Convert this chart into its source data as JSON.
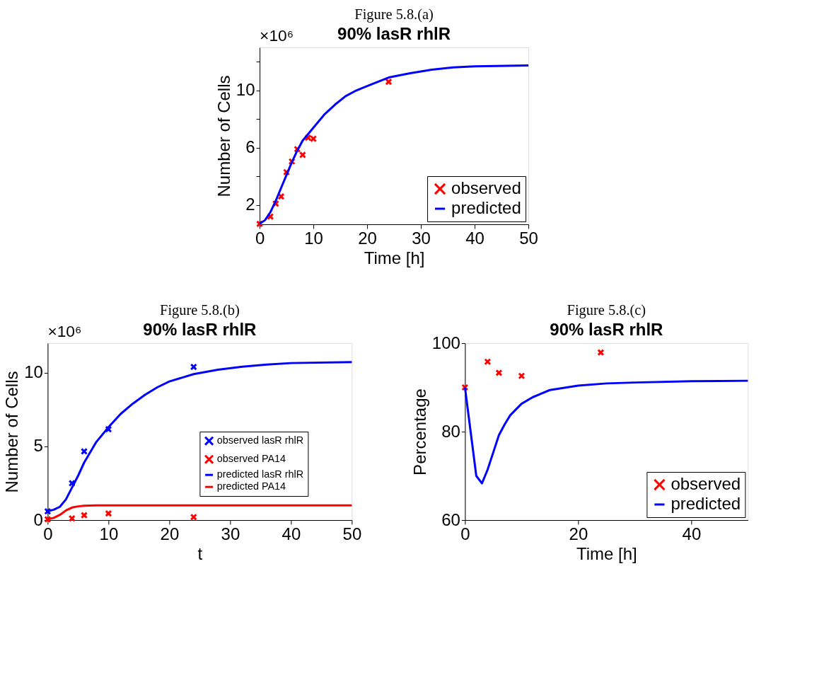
{
  "chart_data": [
    {
      "type": "line",
      "title": "90% lasR rhlR",
      "xlabel": "Time [h]",
      "ylabel": "Number of Cells",
      "annotations": [
        "Figure 5.8.(a)",
        "×10⁶"
      ],
      "xlim": [
        0,
        50
      ],
      "xticks": [
        0,
        10,
        20,
        30,
        40,
        50
      ],
      "ylim": [
        0.66,
        13
      ],
      "yticks": [
        2,
        {
          "value": 4,
          "label": null
        },
        6,
        {
          "value": 8,
          "label": null
        },
        10,
        {
          "value": 12,
          "label": null
        }
      ],
      "legend": "bottom right",
      "grid": false,
      "series": [
        {
          "name": "observed",
          "type": "scatter",
          "marker": "cross",
          "color": "#ff0000",
          "x": [
            0,
            2,
            3,
            4,
            5,
            6,
            7,
            8,
            9,
            10,
            24
          ],
          "values": [
            0.69,
            1.2,
            2.1,
            2.6,
            4.3,
            5.04,
            5.9,
            5.5,
            6.7,
            6.63,
            10.6
          ]
        },
        {
          "name": "predicted",
          "color": "#0000ff",
          "x": [
            0,
            1,
            2,
            3,
            4,
            5,
            6,
            7,
            8,
            10,
            12,
            14,
            16,
            18,
            20,
            24,
            28,
            32,
            36,
            40,
            50
          ],
          "values": [
            0.7,
            0.95,
            1.5,
            2.3,
            3.2,
            4.1,
            5.0,
            5.8,
            6.5,
            7.4,
            8.3,
            9.0,
            9.6,
            10.0,
            10.3,
            10.9,
            11.2,
            11.45,
            11.6,
            11.68,
            11.74
          ]
        }
      ]
    },
    {
      "type": "line",
      "title": "90% lasR rhlR",
      "xlabel": "t",
      "ylabel": "Number of Cells",
      "annotations": [
        "Figure 5.8.(b)",
        "×10⁶"
      ],
      "xlim": [
        0,
        50
      ],
      "xticks": [
        0,
        10,
        20,
        30,
        40,
        50
      ],
      "ylim": [
        0,
        12
      ],
      "yticks": [
        0,
        5,
        10
      ],
      "legend": "right",
      "grid": false,
      "series": [
        {
          "name": "observed lasR rhlR",
          "type": "scatter",
          "marker": "cross",
          "color": "#0000ff",
          "x": [
            0,
            4,
            6,
            10,
            24
          ],
          "values": [
            0.59,
            2.5,
            4.66,
            6.16,
            10.39
          ]
        },
        {
          "name": "observed PA14",
          "type": "scatter",
          "marker": "cross",
          "color": "#ff0000",
          "x": [
            0,
            4,
            6,
            10,
            24
          ],
          "values": [
            0.05,
            0.11,
            0.33,
            0.45,
            0.2
          ]
        },
        {
          "name": "predicted lasR rhlR",
          "color": "#0000ff",
          "x": [
            0,
            1,
            2,
            3,
            4,
            5,
            6,
            8,
            10,
            12,
            14,
            16,
            18,
            20,
            24,
            28,
            32,
            36,
            40,
            50
          ],
          "values": [
            0.6,
            0.7,
            0.9,
            1.4,
            2.2,
            3.0,
            3.9,
            5.3,
            6.3,
            7.2,
            7.9,
            8.5,
            9.0,
            9.4,
            9.9,
            10.2,
            10.4,
            10.55,
            10.65,
            10.72
          ]
        },
        {
          "name": "predicted PA14",
          "color": "#ff0000",
          "x": [
            0,
            1,
            2,
            3,
            4,
            5,
            6,
            8,
            50
          ],
          "values": [
            0.05,
            0.15,
            0.35,
            0.65,
            0.85,
            0.93,
            0.97,
            1.0,
            1.0
          ]
        }
      ]
    },
    {
      "type": "line",
      "title": "90% lasR rhlR",
      "xlabel": "Time [h]",
      "ylabel": "Percentage",
      "annotations": [
        "Figure 5.8.(c)"
      ],
      "xlim": [
        0,
        50
      ],
      "xticks": [
        0,
        20,
        40
      ],
      "ylim": [
        60,
        100
      ],
      "yticks": [
        60,
        80,
        100
      ],
      "legend": "bottom right",
      "grid": false,
      "series": [
        {
          "name": "observed",
          "type": "scatter",
          "marker": "cross",
          "color": "#ff0000",
          "x": [
            0,
            4,
            6,
            10,
            24
          ],
          "values": [
            90.0,
            95.8,
            93.3,
            92.6,
            97.9
          ]
        },
        {
          "name": "predicted",
          "color": "#0000ff",
          "x": [
            0,
            2,
            3,
            4,
            5,
            6,
            7,
            8,
            10,
            12,
            15,
            20,
            25,
            30,
            40,
            50
          ],
          "values": [
            90.0,
            70.0,
            68.3,
            71.4,
            75.3,
            79.2,
            81.6,
            83.7,
            86.3,
            87.8,
            89.4,
            90.4,
            90.9,
            91.1,
            91.4,
            91.5
          ]
        }
      ]
    }
  ]
}
